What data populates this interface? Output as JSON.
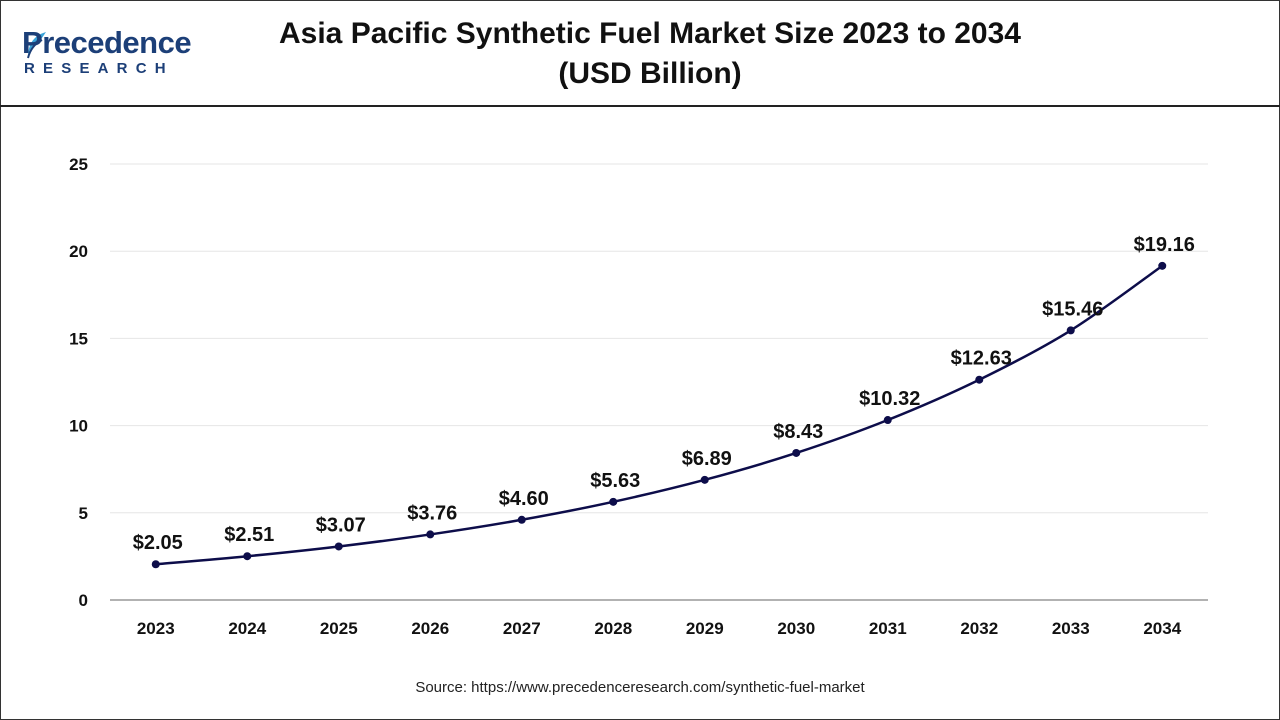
{
  "logo": {
    "top_text": "recedence",
    "first_letter": "P",
    "bottom_text": "RESEARCH"
  },
  "header": {
    "title_line1": "Asia Pacific Synthetic Fuel Market Size 2023 to 2034",
    "title_line2": "(USD Billion)"
  },
  "colors": {
    "line": "#0d0d4a",
    "marker": "#0d0d4a",
    "grid": "#e6e6e6",
    "axis": "#999999",
    "brand": "#1c3f78"
  },
  "chart_data": {
    "type": "line",
    "title": "Asia Pacific Synthetic Fuel Market Size 2023 to 2034 (USD Billion)",
    "xlabel": "",
    "ylabel": "",
    "categories": [
      "2023",
      "2024",
      "2025",
      "2026",
      "2027",
      "2028",
      "2029",
      "2030",
      "2031",
      "2032",
      "2033",
      "2034"
    ],
    "series": [
      {
        "values": [
          2.05,
          2.51,
          3.07,
          3.76,
          4.6,
          5.63,
          6.89,
          8.43,
          10.32,
          12.63,
          15.46,
          19.16
        ],
        "labels": [
          "$2.05",
          "$2.51",
          "$3.07",
          "$3.76",
          "$4.60",
          "$5.63",
          "$6.89",
          "$8.43",
          "$10.32",
          "$12.63",
          "$15.46",
          "$19.16"
        ]
      }
    ],
    "ylim": [
      0,
      25
    ],
    "yticks": [
      "0",
      "5",
      "10",
      "15",
      "20",
      "25"
    ],
    "grid": true,
    "legend": "none"
  },
  "footer": {
    "source": "Source: https://www.precedenceresearch.com/synthetic-fuel-market"
  }
}
